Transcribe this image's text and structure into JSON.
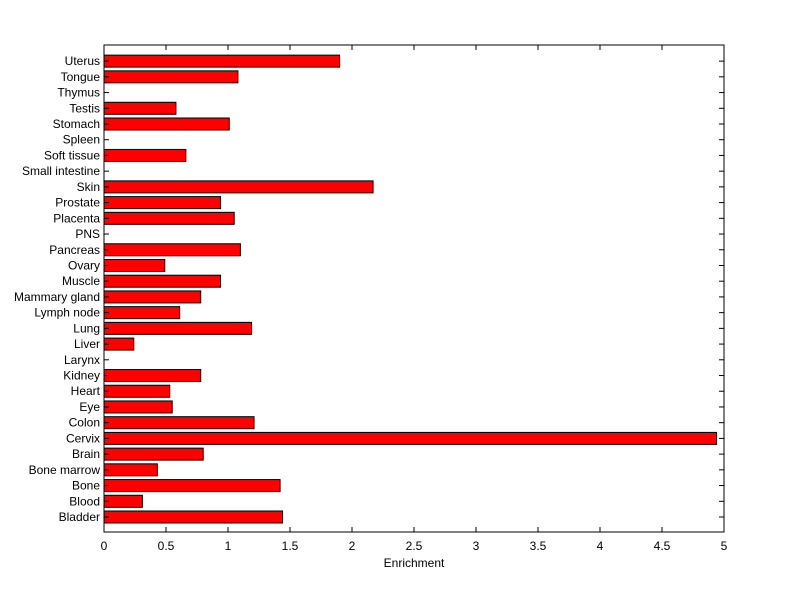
{
  "chart_data": {
    "type": "bar",
    "orientation": "horizontal",
    "categories": [
      "Bladder",
      "Blood",
      "Bone",
      "Bone marrow",
      "Brain",
      "Cervix",
      "Colon",
      "Eye",
      "Heart",
      "Kidney",
      "Larynx",
      "Liver",
      "Lung",
      "Lymph node",
      "Mammary gland",
      "Muscle",
      "Ovary",
      "Pancreas",
      "PNS",
      "Placenta",
      "Prostate",
      "Skin",
      "Small intestine",
      "Soft tissue",
      "Spleen",
      "Stomach",
      "Testis",
      "Thymus",
      "Tongue",
      "Uterus"
    ],
    "values": [
      1.44,
      0.31,
      1.42,
      0.43,
      0.8,
      4.94,
      1.21,
      0.55,
      0.53,
      0.78,
      0,
      0.24,
      1.19,
      0.61,
      0.78,
      0.94,
      0.49,
      1.1,
      0,
      1.05,
      0.94,
      2.17,
      0,
      0.66,
      0,
      1.01,
      0.58,
      0,
      1.08,
      1.9
    ],
    "xlabel": "Enrichment",
    "ylabel": "",
    "title": "",
    "xlim": [
      0,
      5
    ],
    "xticks": [
      "0",
      "0.5",
      "1",
      "1.5",
      "2",
      "2.5",
      "3",
      "3.5",
      "4",
      "4.5",
      "5"
    ],
    "grid": false,
    "legend": "none",
    "bar_color": "#ff0000",
    "bar_edge_color": "#000000"
  }
}
